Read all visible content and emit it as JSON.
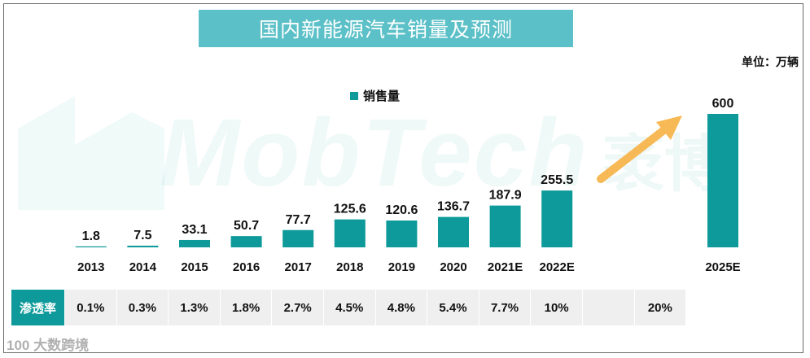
{
  "title": "国内新能源汽车销量及预测",
  "unit_label": "单位：万辆",
  "legend_label": "销售量",
  "watermark_text": "MobTech",
  "watermark_cn": "袤博",
  "footer_watermark": "100 大数跨境",
  "colors": {
    "bar": "#0e9a9a",
    "title_bg": "#5bc0c7",
    "arrow": "#f7b955",
    "table_bg": "#efefef"
  },
  "chart_data": {
    "type": "bar",
    "title": "国内新能源汽车销量及预测",
    "categories": [
      "2013",
      "2014",
      "2015",
      "2016",
      "2017",
      "2018",
      "2019",
      "2020",
      "2021E",
      "2022E",
      "",
      "2025E"
    ],
    "series": [
      {
        "name": "销售量",
        "values": [
          1.8,
          7.5,
          33.1,
          50.7,
          77.7,
          125.6,
          120.6,
          136.7,
          187.9,
          255.5,
          null,
          600
        ]
      }
    ],
    "value_labels": [
      "1.8",
      "7.5",
      "33.1",
      "50.7",
      "77.7",
      "125.6",
      "120.6",
      "136.7",
      "187.9",
      "255.5",
      "",
      "600"
    ],
    "ylabel": "万辆",
    "ylim": [
      0,
      600
    ],
    "legend_position": "top-center",
    "annotation": "arrow from 2022E to 2025E"
  },
  "penetration": {
    "header": "渗透率",
    "values": [
      "0.1%",
      "0.3%",
      "1.3%",
      "1.8%",
      "2.7%",
      "4.5%",
      "4.8%",
      "5.4%",
      "7.7%",
      "10%",
      "",
      "20%"
    ]
  }
}
